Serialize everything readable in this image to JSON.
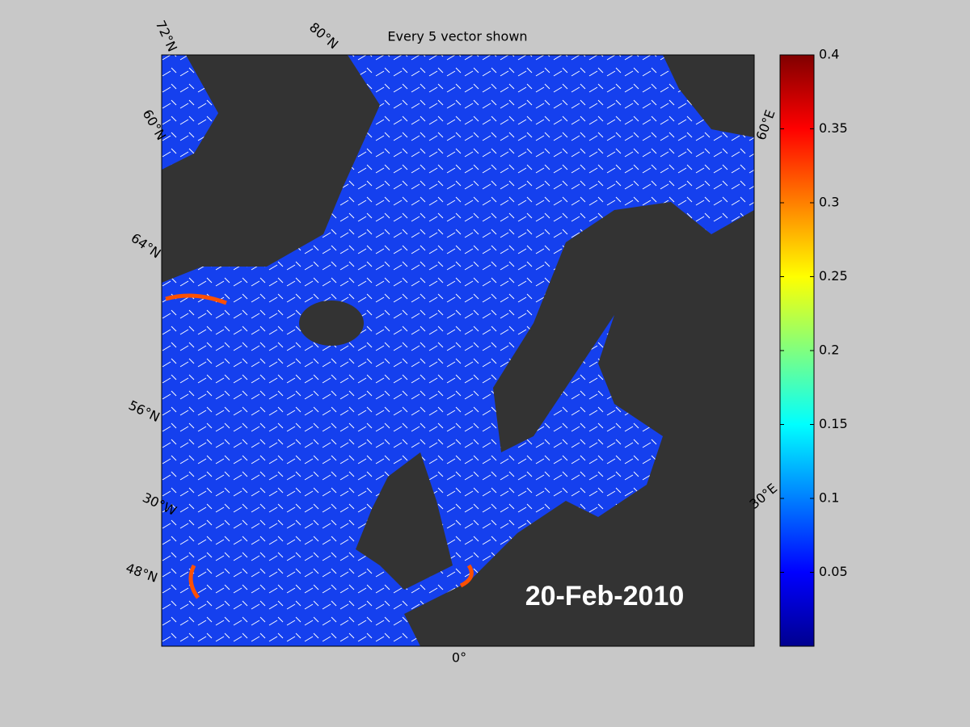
{
  "title": "Every 5 vector shown",
  "date_label": "20-Feb-2010",
  "graticule_labels": [
    "72°N",
    "80°N",
    "60°N",
    "64°N",
    "56°N",
    "30°W",
    "48°N",
    "0°",
    "60°E",
    "30°E"
  ],
  "colorbar": {
    "clim": [
      0,
      0.4
    ],
    "ticks": [
      0.05,
      0.1,
      0.15,
      0.2,
      0.25,
      0.3,
      0.35,
      0.4
    ]
  }
}
